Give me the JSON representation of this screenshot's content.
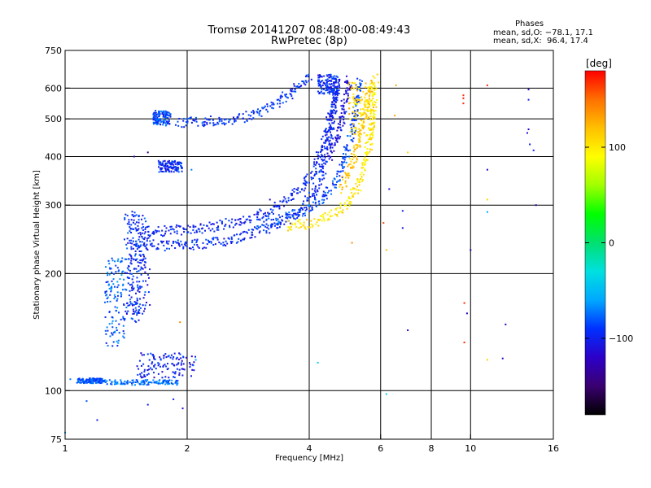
{
  "chart_data": {
    "type": "scatter",
    "title": "Tromsø 20141207 08:48:00-08:49:43",
    "subtitle": "RwPretec (8p)",
    "xlabel": "Frequency [MHz]",
    "ylabel": "Stationary phase Virtual Height [km]",
    "x_scale": "log",
    "y_scale": "log",
    "xlim": [
      1,
      16
    ],
    "ylim": [
      75,
      750
    ],
    "x_ticks": [
      1,
      2,
      4,
      6,
      8,
      10,
      16
    ],
    "x_tick_labels": [
      "1",
      "2",
      "4",
      "6",
      "8",
      "10",
      "16"
    ],
    "x_grid": [
      1,
      2,
      4,
      6,
      8,
      10,
      16
    ],
    "y_ticks": [
      75,
      100,
      200,
      300,
      400,
      500,
      600,
      750
    ],
    "y_tick_labels": [
      "75",
      "100",
      "200",
      "300",
      "400",
      "500",
      "600",
      "750"
    ],
    "y_grid": [
      100,
      200,
      300,
      400,
      500,
      600
    ],
    "grid": true,
    "colorbar": {
      "label": "[deg]",
      "range": [
        -180,
        180
      ],
      "ticks": [
        -100,
        0,
        100
      ],
      "tick_labels": [
        "−100",
        "0",
        "100"
      ],
      "colors": [
        "#000000",
        "#3a0070",
        "#2c00c8",
        "#0030ff",
        "#00a8ff",
        "#00e0e0",
        "#00e070",
        "#00ff00",
        "#a0ff00",
        "#ffff00",
        "#ffc000",
        "#ff7000",
        "#ff0000"
      ]
    },
    "stats": {
      "heading": "Phases",
      "o_mode": "mean, sd,O: −78.1, 17.1",
      "x_mode": "mean, sd,X:  96.4, 17.4"
    },
    "traces": [
      {
        "name": "",
        "phase": -95,
        "points": [
          [
            1.45,
            240
          ],
          [
            1.6,
            237
          ],
          [
            1.8,
            236
          ],
          [
            2.0,
            237
          ],
          [
            2.3,
            240
          ],
          [
            2.6,
            246
          ],
          [
            3.0,
            256
          ],
          [
            3.4,
            270
          ],
          [
            3.8,
            290
          ],
          [
            4.1,
            320
          ],
          [
            4.3,
            360
          ],
          [
            4.45,
            420
          ],
          [
            4.55,
            500
          ],
          [
            4.65,
            580
          ],
          [
            4.7,
            640
          ]
        ]
      },
      {
        "name": "",
        "phase": -98,
        "points": [
          [
            1.5,
            255
          ],
          [
            1.8,
            258
          ],
          [
            2.2,
            262
          ],
          [
            2.6,
            270
          ],
          [
            3.0,
            282
          ],
          [
            3.4,
            300
          ],
          [
            3.8,
            330
          ],
          [
            4.1,
            370
          ],
          [
            4.35,
            430
          ],
          [
            4.5,
            500
          ],
          [
            4.62,
            570
          ],
          [
            4.7,
            630
          ]
        ]
      },
      {
        "name": "",
        "phase": -92,
        "points": [
          [
            1.9,
            490
          ],
          [
            2.2,
            492
          ],
          [
            2.6,
            498
          ],
          [
            2.9,
            510
          ],
          [
            3.2,
            535
          ],
          [
            3.5,
            570
          ],
          [
            3.8,
            610
          ],
          [
            4.05,
            645
          ]
        ]
      },
      {
        "name": "",
        "phase": -110,
        "points": [
          [
            4.5,
            400
          ],
          [
            4.7,
            450
          ],
          [
            4.85,
            520
          ],
          [
            4.95,
            580
          ],
          [
            5.0,
            640
          ]
        ]
      },
      {
        "name": "",
        "phase": -85,
        "points": [
          [
            3.0,
            270
          ],
          [
            3.5,
            278
          ],
          [
            3.9,
            290
          ],
          [
            4.3,
            310
          ],
          [
            4.6,
            340
          ],
          [
            4.85,
            380
          ],
          [
            5.0,
            430
          ],
          [
            5.15,
            490
          ],
          [
            5.25,
            560
          ],
          [
            5.35,
            630
          ]
        ]
      },
      {
        "name": "",
        "phase": 100,
        "points": [
          [
            3.5,
            265
          ],
          [
            3.9,
            268
          ],
          [
            4.3,
            275
          ],
          [
            4.7,
            288
          ],
          [
            5.0,
            305
          ],
          [
            5.25,
            330
          ],
          [
            5.45,
            370
          ],
          [
            5.6,
            420
          ],
          [
            5.7,
            480
          ],
          [
            5.75,
            540
          ],
          [
            5.8,
            600
          ],
          [
            5.85,
            640
          ]
        ]
      },
      {
        "name": "",
        "phase": 115,
        "points": [
          [
            4.8,
            330
          ],
          [
            5.1,
            380
          ],
          [
            5.3,
            440
          ],
          [
            5.45,
            500
          ],
          [
            5.55,
            560
          ],
          [
            5.6,
            620
          ]
        ]
      }
    ],
    "clusters": [
      {
        "name": "",
        "phase": -90,
        "x": [
          1.4,
          1.58
        ],
        "y": [
          150,
          290
        ]
      },
      {
        "name": "",
        "phase": -100,
        "x": [
          1.42,
          1.62
        ],
        "y": [
          155,
          285
        ]
      },
      {
        "name": "",
        "phase": -80,
        "x": [
          1.25,
          1.4
        ],
        "y": [
          130,
          220
        ]
      },
      {
        "name": "",
        "phase": -85,
        "x": [
          1.65,
          1.82
        ],
        "y": [
          480,
          525
        ]
      },
      {
        "name": "",
        "phase": -95,
        "x": [
          1.7,
          1.95
        ],
        "y": [
          365,
          390
        ]
      },
      {
        "name": "",
        "phase": -100,
        "x": [
          1.5,
          2.1
        ],
        "y": [
          108,
          125
        ]
      },
      {
        "name": "",
        "phase": 110,
        "x": [
          5.0,
          5.8
        ],
        "y": [
          450,
          620
        ]
      },
      {
        "name": "",
        "phase": -95,
        "x": [
          4.2,
          4.7
        ],
        "y": [
          580,
          650
        ]
      }
    ],
    "dense_lines": [
      {
        "name": "",
        "phase": -75,
        "x": [
          1.25,
          1.9
        ],
        "y": 105
      },
      {
        "name": "",
        "phase": -80,
        "x": [
          1.07,
          1.25
        ],
        "y": 106
      }
    ],
    "scattered_points": [
      {
        "x": 6.55,
        "y": 610,
        "phase": 130
      },
      {
        "x": 6.5,
        "y": 510,
        "phase": 130
      },
      {
        "x": 7.0,
        "y": 410,
        "phase": 110
      },
      {
        "x": 6.3,
        "y": 330,
        "phase": -110
      },
      {
        "x": 6.8,
        "y": 290,
        "phase": -100
      },
      {
        "x": 6.1,
        "y": 270,
        "phase": 160
      },
      {
        "x": 6.8,
        "y": 262,
        "phase": -110
      },
      {
        "x": 6.2,
        "y": 230,
        "phase": 120
      },
      {
        "x": 7.0,
        "y": 143,
        "phase": -120
      },
      {
        "x": 9.6,
        "y": 575,
        "phase": 170
      },
      {
        "x": 9.6,
        "y": 565,
        "phase": 175
      },
      {
        "x": 9.6,
        "y": 548,
        "phase": 170
      },
      {
        "x": 11.0,
        "y": 610,
        "phase": 170
      },
      {
        "x": 10.0,
        "y": 230,
        "phase": -130
      },
      {
        "x": 9.65,
        "y": 168,
        "phase": 170
      },
      {
        "x": 9.8,
        "y": 158,
        "phase": -120
      },
      {
        "x": 9.65,
        "y": 133,
        "phase": 170
      },
      {
        "x": 11.0,
        "y": 370,
        "phase": -120
      },
      {
        "x": 11.0,
        "y": 310,
        "phase": 110
      },
      {
        "x": 11.0,
        "y": 288,
        "phase": -60
      },
      {
        "x": 11.0,
        "y": 120,
        "phase": 110
      },
      {
        "x": 12.0,
        "y": 121,
        "phase": -120
      },
      {
        "x": 12.2,
        "y": 148,
        "phase": -120
      },
      {
        "x": 13.9,
        "y": 595,
        "phase": -110
      },
      {
        "x": 13.9,
        "y": 560,
        "phase": -100
      },
      {
        "x": 13.9,
        "y": 470,
        "phase": -120
      },
      {
        "x": 13.8,
        "y": 460,
        "phase": -110
      },
      {
        "x": 14.0,
        "y": 430,
        "phase": -100
      },
      {
        "x": 14.3,
        "y": 415,
        "phase": -100
      },
      {
        "x": 14.5,
        "y": 300,
        "phase": -130
      },
      {
        "x": 4.2,
        "y": 118,
        "phase": -40
      },
      {
        "x": 6.2,
        "y": 98,
        "phase": -40
      },
      {
        "x": 1.6,
        "y": 92,
        "phase": -100
      },
      {
        "x": 1.85,
        "y": 95,
        "phase": -100
      },
      {
        "x": 1.0,
        "y": 78,
        "phase": -60
      },
      {
        "x": 1.2,
        "y": 84,
        "phase": -100
      },
      {
        "x": 1.03,
        "y": 107,
        "phase": -70
      },
      {
        "x": 1.13,
        "y": 94,
        "phase": -80
      },
      {
        "x": 1.6,
        "y": 410,
        "phase": -140
      },
      {
        "x": 1.48,
        "y": 400,
        "phase": -120
      },
      {
        "x": 2.05,
        "y": 370,
        "phase": -70
      },
      {
        "x": 3.2,
        "y": 310,
        "phase": -120
      },
      {
        "x": 1.92,
        "y": 150,
        "phase": 140
      },
      {
        "x": 1.85,
        "y": 122,
        "phase": -90
      },
      {
        "x": 1.95,
        "y": 90,
        "phase": -110
      },
      {
        "x": 2.1,
        "y": 120,
        "phase": -60
      },
      {
        "x": 5.1,
        "y": 240,
        "phase": 140
      }
    ]
  }
}
